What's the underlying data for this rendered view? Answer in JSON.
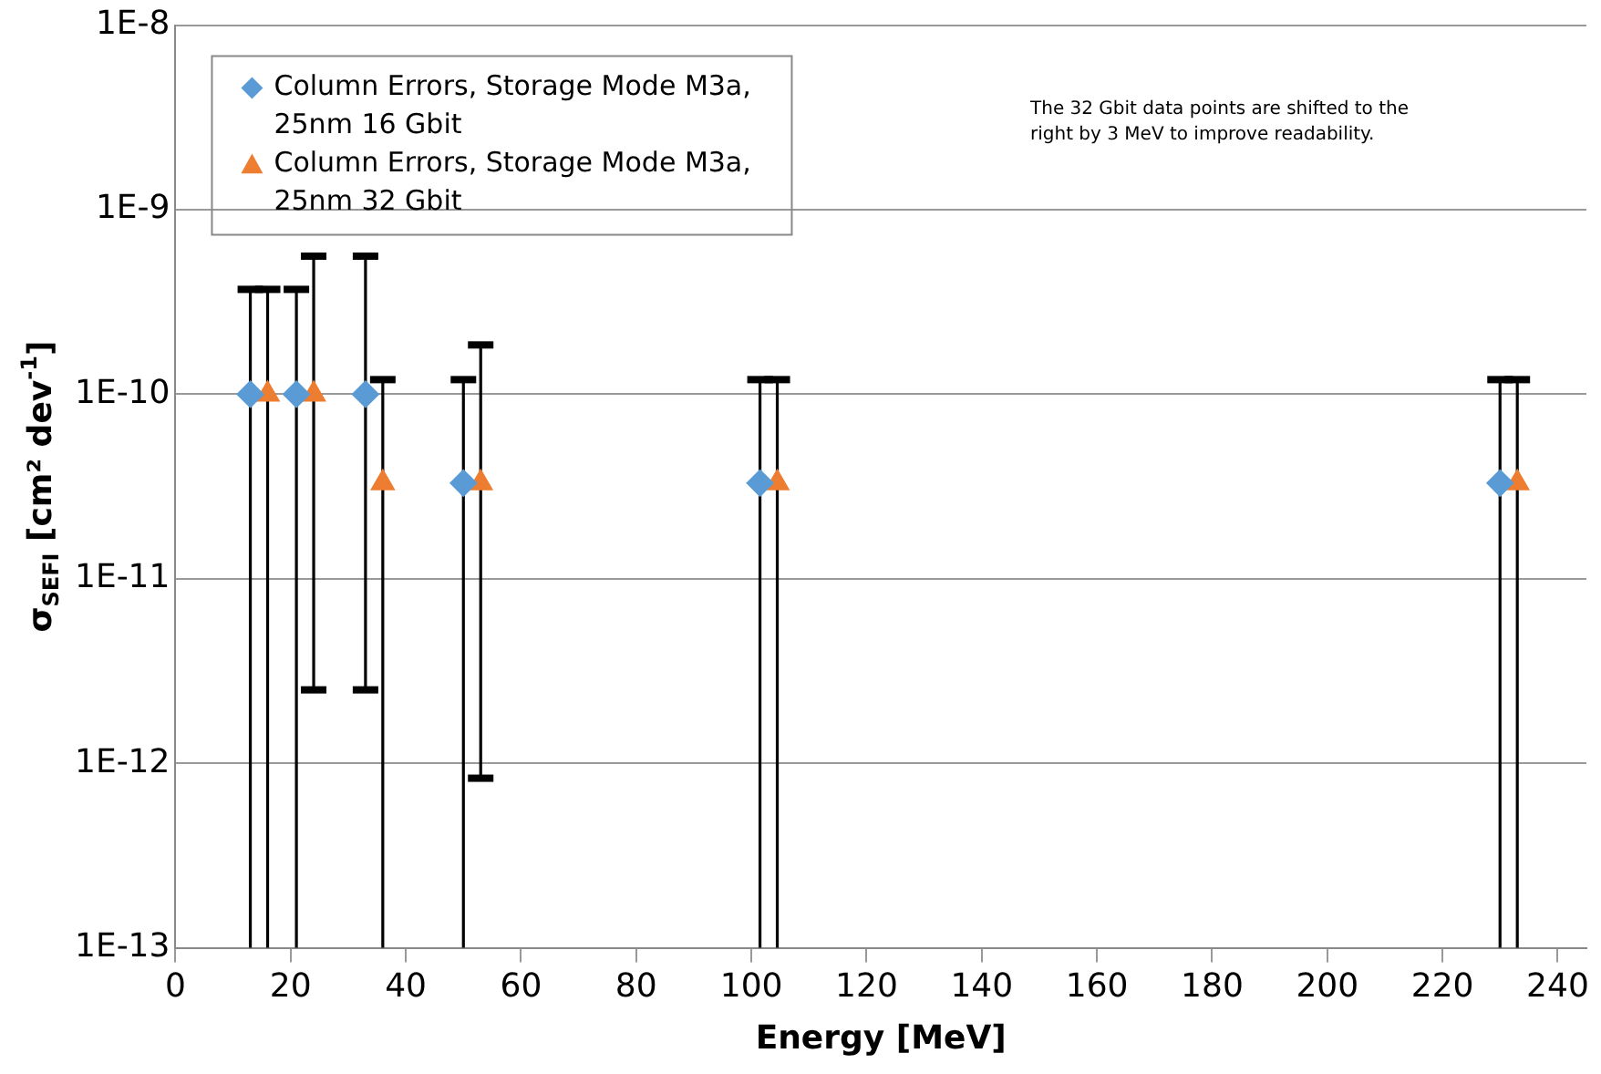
{
  "chart_data": {
    "type": "scatter",
    "xlabel": "Energy [MeV]",
    "ylabel": "σ$_{SEFI}$ [cm² dev$^{-1}$]",
    "annotations": [
      "The 32 Gbit data points are shifted to the right by 3 MeV to improve readability."
    ],
    "xlim": [
      0,
      245
    ],
    "xticks": [
      0,
      20,
      40,
      60,
      80,
      100,
      120,
      140,
      160,
      180,
      200,
      220,
      240
    ],
    "ylim": [
      1e-13,
      1e-08
    ],
    "yticks": [
      {
        "value": 1e-13,
        "label": "1E-13"
      },
      {
        "value": 1e-12,
        "label": "1E-12"
      },
      {
        "value": 1e-11,
        "label": "1E-11"
      },
      {
        "value": 1e-10,
        "label": "1E-10"
      },
      {
        "value": 1e-09,
        "label": "1E-9"
      },
      {
        "value": 1e-08,
        "label": "1E-8"
      }
    ],
    "log": "y",
    "grid": "y",
    "legend": "top left",
    "series": [
      {
        "name": "Column Errors, Storage Mode M3a, 25nm 16 Gbit",
        "color": "#5b9bd5",
        "marker": "diamond",
        "x": [
          13,
          21,
          33,
          50,
          101.5,
          230
        ],
        "values": [
          1e-10,
          1e-10,
          1e-10,
          3.3e-11,
          3.3e-11,
          3.3e-11
        ],
        "errors": [
          [
            1e-13,
            3.7e-10
          ],
          [
            1e-13,
            3.7e-10
          ],
          [
            2.5e-12,
            5.6e-10
          ],
          [
            1e-13,
            1.2e-10
          ],
          [
            1e-13,
            1.2e-10
          ],
          [
            1e-13,
            1.2e-10
          ]
        ]
      },
      {
        "name": "Column Errors, Storage Mode M3a, 25nm 32 Gbit",
        "color": "#ed7d31",
        "marker": "triangle",
        "x": [
          16,
          24,
          36,
          53,
          104.5,
          233
        ],
        "values": [
          1e-10,
          1e-10,
          3.3e-11,
          3.3e-11,
          3.3e-11,
          3.3e-11
        ],
        "errors": [
          [
            1e-13,
            3.7e-10
          ],
          [
            2.5e-12,
            5.6e-10
          ],
          [
            1e-13,
            1.2e-10
          ],
          [
            8.3e-13,
            1.85e-10
          ],
          [
            1e-13,
            1.2e-10
          ],
          [
            1e-13,
            1.2e-10
          ]
        ]
      }
    ]
  }
}
